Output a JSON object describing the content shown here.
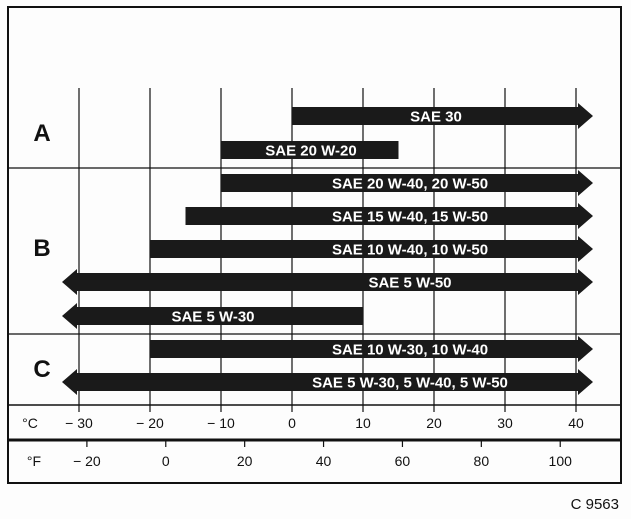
{
  "groups": [
    {
      "label": "A"
    },
    {
      "label": "B"
    },
    {
      "label": "C"
    }
  ],
  "bars": [
    {
      "label": "SAE 30",
      "group": "A",
      "from_c": 0,
      "to_c": 40,
      "arrow_left": false,
      "arrow_right": true
    },
    {
      "label": "SAE 20 W-20",
      "group": "A",
      "from_c": -10,
      "to_c": 15,
      "arrow_left": false,
      "arrow_right": false
    },
    {
      "label": "SAE 20 W-40, 20 W-50",
      "group": "B",
      "from_c": -10,
      "to_c": 40,
      "arrow_left": false,
      "arrow_right": true
    },
    {
      "label": "SAE 15 W-40, 15 W-50",
      "group": "B",
      "from_c": -15,
      "to_c": 40,
      "arrow_left": false,
      "arrow_right": true
    },
    {
      "label": "SAE 10 W-40, 10 W-50",
      "group": "B",
      "from_c": -20,
      "to_c": 40,
      "arrow_left": false,
      "arrow_right": true
    },
    {
      "label": "SAE 5 W-50",
      "group": "B",
      "from_c": -30,
      "to_c": 40,
      "arrow_left": true,
      "arrow_right": true
    },
    {
      "label": "SAE 5 W-30",
      "group": "B",
      "from_c": -30,
      "to_c": 10,
      "arrow_left": true,
      "arrow_right": false
    },
    {
      "label": "SAE 10 W-30, 10 W-40",
      "group": "C",
      "from_c": -20,
      "to_c": 40,
      "arrow_left": false,
      "arrow_right": true
    },
    {
      "label": "SAE 5 W-30, 5 W-40, 5 W-50",
      "group": "C",
      "from_c": -30,
      "to_c": 40,
      "arrow_left": true,
      "arrow_right": true
    }
  ],
  "celsius_axis": {
    "unit": "°C",
    "ticks": [
      -30,
      -20,
      -10,
      0,
      10,
      20,
      30,
      40
    ],
    "tick_labels": [
      "− 30",
      "− 20",
      "− 10",
      "0",
      "10",
      "20",
      "30",
      "40"
    ]
  },
  "fahrenheit_axis": {
    "unit": "°F",
    "ticks": [
      -20,
      0,
      20,
      40,
      60,
      80,
      100
    ],
    "tick_labels": [
      "− 20",
      "0",
      "20",
      "40",
      "60",
      "80",
      "100"
    ]
  },
  "figure_code": "C 9563",
  "colors": {
    "bar": "#1a1a1a",
    "bar_text": "#ffffff",
    "line": "#111111"
  }
}
